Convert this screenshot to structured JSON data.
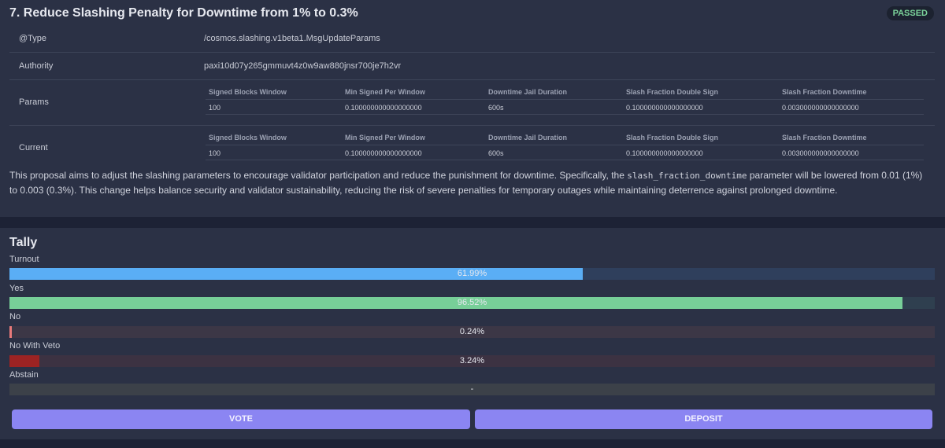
{
  "proposal": {
    "title": "7. Reduce Slashing Penalty for Downtime from 1% to 0.3%",
    "status": "PASSED",
    "rows": {
      "type": {
        "label": "@Type",
        "value": "/cosmos.slashing.v1beta1.MsgUpdateParams"
      },
      "authority": {
        "label": "Authority",
        "value": "paxi10d07y265gmmuvt4z0w9aw880jnsr700je7h2vr"
      },
      "params": {
        "label": "Params"
      },
      "current": {
        "label": "Current"
      }
    },
    "param_columns": [
      "Signed Blocks Window",
      "Min Signed Per Window",
      "Downtime Jail Duration",
      "Slash Fraction Double Sign",
      "Slash Fraction Downtime"
    ],
    "params_values": [
      "100",
      "0.100000000000000000",
      "600s",
      "0.100000000000000000",
      "0.003000000000000000"
    ],
    "current_values": [
      "100",
      "0.100000000000000000",
      "600s",
      "0.100000000000000000",
      "0.003000000000000000"
    ],
    "description": {
      "before": "This proposal aims to adjust the slashing parameters to encourage validator participation and reduce the punishment for downtime. Specifically, the ",
      "code": "slash_fraction_downtime",
      "after": " parameter will be lowered from 0.01 (1%) to 0.003 (0.3%). This change helps balance security and validator sustainability, reducing the risk of severe penalties for temporary outages while maintaining deterrence against prolonged downtime."
    }
  },
  "tally": {
    "title": "Tally",
    "bars": {
      "turnout": {
        "label": "Turnout",
        "text": "61.99%",
        "fraction": 0.6199
      },
      "yes": {
        "label": "Yes",
        "text": "96.52%",
        "fraction": 0.9652
      },
      "no": {
        "label": "No",
        "text": "0.24%",
        "fraction": 0.0024
      },
      "veto": {
        "label": "No With Veto",
        "text": "3.24%",
        "fraction": 0.0324
      },
      "abstain": {
        "label": "Abstain",
        "text": "-",
        "fraction": 0
      }
    },
    "colors": {
      "turnout": "#5aaef5",
      "yes": "#77cf98",
      "no": "#e87a7a",
      "veto": "#9c2323"
    },
    "buttons": {
      "vote": "VOTE",
      "deposit": "DEPOSIT"
    }
  }
}
